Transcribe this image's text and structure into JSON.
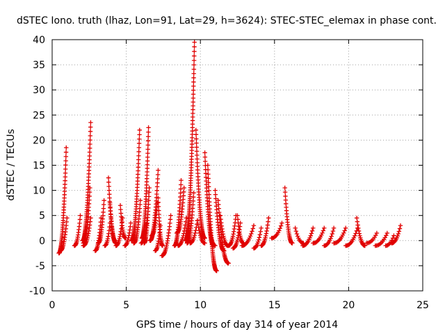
{
  "chart_data": {
    "type": "scatter",
    "title": "dSTEC Iono. truth (lhaz, Lon=91, Lat=29, h=3624): STEC-STEC_elemax in phase cont.",
    "xlabel": "GPS time / hours of day 314 of year 2014",
    "ylabel": "dSTEC  / TECUs",
    "xlim": [
      0,
      25
    ],
    "ylim": [
      -10,
      40
    ],
    "x_ticks": [
      0,
      5,
      10,
      15,
      20,
      25
    ],
    "y_ticks": [
      -10,
      -5,
      0,
      5,
      10,
      15,
      20,
      25,
      30,
      35,
      40
    ],
    "x_tick_labels": [
      "0",
      "5",
      "10",
      "15",
      "20",
      "25"
    ],
    "y_tick_labels": [
      "-10",
      "-5",
      "0",
      "5",
      "10",
      "15",
      "20",
      "25",
      "30",
      "35",
      "40"
    ],
    "grid": true,
    "marker": "plus",
    "marker_color": "#e00000",
    "series": [
      {
        "arcs": [
          {
            "x": [
              0.45,
              0.95
            ],
            "y": [
              -2.5,
              18.5
            ]
          },
          {
            "x": [
              0.55,
              1.0
            ],
            "y": [
              -2.0,
              4.5
            ]
          },
          {
            "x": [
              1.5,
              1.9
            ],
            "y": [
              -1.0,
              5.0
            ]
          },
          {
            "x": [
              2.05,
              2.6
            ],
            "y": [
              0.0,
              23.5
            ]
          },
          {
            "x": [
              2.1,
              2.55
            ],
            "y": [
              -0.5,
              10.5
            ]
          },
          {
            "x": [
              2.1,
              2.6
            ],
            "y": [
              -1.0,
              4.5
            ]
          },
          {
            "x": [
              2.9,
              3.3
            ],
            "y": [
              -2.0,
              4.5
            ]
          },
          {
            "x": [
              3.1,
              3.5
            ],
            "y": [
              -0.5,
              8.0
            ]
          },
          {
            "x": [
              3.55,
              3.9
            ],
            "y": [
              -1.0,
              3.5
            ]
          },
          {
            "x": [
              3.8,
              4.25
            ],
            "y": [
              12.5,
              0.0
            ]
          },
          {
            "x": [
              3.9,
              4.3
            ],
            "y": [
              7.5,
              -0.5
            ]
          },
          {
            "x": [
              4.3,
              4.75
            ],
            "y": [
              -1.0,
              4.5
            ]
          },
          {
            "x": [
              4.6,
              4.95
            ],
            "y": [
              7.0,
              0.5
            ]
          },
          {
            "x": [
              4.9,
              5.3
            ],
            "y": [
              -1.0,
              3.5
            ]
          },
          {
            "x": [
              5.35,
              5.9
            ],
            "y": [
              0.0,
              22.0
            ]
          },
          {
            "x": [
              5.5,
              5.95
            ],
            "y": [
              -0.5,
              8.0
            ]
          },
          {
            "x": [
              6.0,
              6.4
            ],
            "y": [
              -0.5,
              4.0
            ]
          },
          {
            "x": [
              6.05,
              6.5
            ],
            "y": [
              0.5,
              22.5
            ]
          },
          {
            "x": [
              6.2,
              6.55
            ],
            "y": [
              -0.5,
              10.5
            ]
          },
          {
            "x": [
              6.6,
              7.15
            ],
            "y": [
              0.0,
              14.0
            ]
          },
          {
            "x": [
              6.7,
              7.1
            ],
            "y": [
              1.0,
              7.5
            ]
          },
          {
            "x": [
              6.95,
              7.3
            ],
            "y": [
              -2.0,
              3.0
            ]
          },
          {
            "x": [
              7.15,
              7.45
            ],
            "y": [
              8.5,
              -1.0
            ]
          },
          {
            "x": [
              7.4,
              8.0
            ],
            "y": [
              -3.0,
              5.0
            ]
          },
          {
            "x": [
              8.25,
              8.7
            ],
            "y": [
              -1.0,
              12.0
            ]
          },
          {
            "x": [
              8.4,
              8.9
            ],
            "y": [
              1.5,
              10.5
            ]
          },
          {
            "x": [
              8.5,
              9.05
            ],
            "y": [
              -1.0,
              4.5
            ]
          },
          {
            "x": [
              9.0,
              9.6
            ],
            "y": [
              0.0,
              39.5
            ]
          },
          {
            "x": [
              9.1,
              9.55
            ],
            "y": [
              -0.5,
              9.5
            ]
          },
          {
            "x": [
              9.3,
              9.8
            ],
            "y": [
              -0.5,
              4.0
            ]
          },
          {
            "x": [
              9.7,
              10.3
            ],
            "y": [
              22.0,
              0.5
            ]
          },
          {
            "x": [
              9.8,
              10.3
            ],
            "y": [
              4.0,
              -0.5
            ]
          },
          {
            "x": [
              10.3,
              10.9
            ],
            "y": [
              17.5,
              -1.0
            ]
          },
          {
            "x": [
              10.5,
              11.1
            ],
            "y": [
              15.0,
              -6.0
            ]
          },
          {
            "x": [
              10.6,
              11.0
            ],
            "y": [
              3.0,
              -1.0
            ]
          },
          {
            "x": [
              11.0,
              11.6
            ],
            "y": [
              10.0,
              -2.0
            ]
          },
          {
            "x": [
              11.2,
              11.9
            ],
            "y": [
              8.0,
              -4.5
            ]
          },
          {
            "x": [
              11.35,
              11.85
            ],
            "y": [
              5.0,
              -1.0
            ]
          },
          {
            "x": [
              11.9,
              12.4
            ],
            "y": [
              -1.0,
              5.0
            ]
          },
          {
            "x": [
              12.2,
              12.7
            ],
            "y": [
              -1.5,
              3.5
            ]
          },
          {
            "x": [
              12.5,
              12.9
            ],
            "y": [
              5.0,
              -0.5
            ]
          },
          {
            "x": [
              12.8,
              13.6
            ],
            "y": [
              -1.0,
              3.0
            ]
          },
          {
            "x": [
              13.6,
              14.1
            ],
            "y": [
              -1.5,
              2.5
            ]
          },
          {
            "x": [
              14.1,
              14.6
            ],
            "y": [
              -1.0,
              4.5
            ]
          },
          {
            "x": [
              14.8,
              15.5
            ],
            "y": [
              0.5,
              3.5
            ]
          },
          {
            "x": [
              15.7,
              16.2
            ],
            "y": [
              10.5,
              -0.5
            ]
          },
          {
            "x": [
              16.4,
              16.95
            ],
            "y": [
              2.5,
              -0.5
            ]
          },
          {
            "x": [
              16.9,
              17.6
            ],
            "y": [
              -1.0,
              2.5
            ]
          },
          {
            "x": [
              17.6,
              18.35
            ],
            "y": [
              -0.5,
              2.5
            ]
          },
          {
            "x": [
              18.35,
              19.0
            ],
            "y": [
              -1.0,
              2.5
            ]
          },
          {
            "x": [
              19.0,
              19.8
            ],
            "y": [
              -0.5,
              2.5
            ]
          },
          {
            "x": [
              19.8,
              20.6
            ],
            "y": [
              -1.0,
              2.5
            ]
          },
          {
            "x": [
              20.55,
              21.1
            ],
            "y": [
              4.5,
              -1.0
            ]
          },
          {
            "x": [
              21.2,
              21.9
            ],
            "y": [
              -0.5,
              1.5
            ]
          },
          {
            "x": [
              21.8,
              22.6
            ],
            "y": [
              -1.0,
              1.5
            ]
          },
          {
            "x": [
              22.5,
              23.05
            ],
            "y": [
              -1.0,
              1.0
            ]
          },
          {
            "x": [
              22.9,
              23.5
            ],
            "y": [
              -0.5,
              3.0
            ]
          }
        ]
      }
    ]
  }
}
